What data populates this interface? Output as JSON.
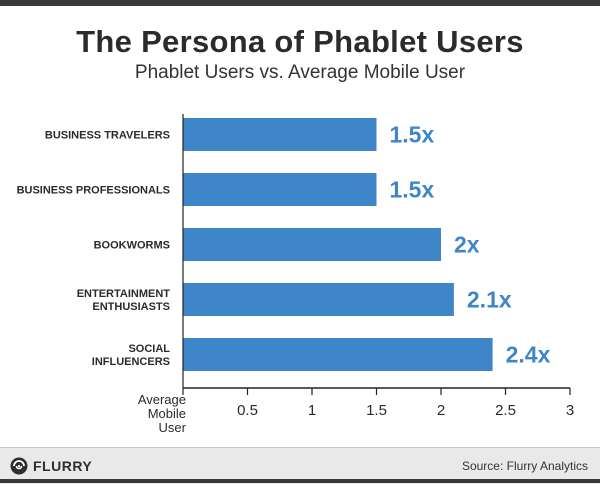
{
  "header": {
    "title": "The Persona of Phablet Users",
    "subtitle": "Phablet Users vs. Average Mobile User"
  },
  "chart_data": {
    "type": "bar",
    "orientation": "horizontal",
    "title": "The Persona of Phablet Users",
    "subtitle": "Phablet Users vs. Average Mobile User",
    "categories": [
      [
        "BUSINESS TRAVELERS"
      ],
      [
        "BUSINESS PROFESSIONALS"
      ],
      [
        "BOOKWORMS"
      ],
      [
        "ENTERTAINMENT",
        "ENTHUSIASTS"
      ],
      [
        "SOCIAL",
        "INFLUENCERS"
      ]
    ],
    "values": [
      1.5,
      1.5,
      2.0,
      2.1,
      2.4
    ],
    "data_labels": [
      "1.5x",
      "1.5x",
      "2x",
      "2.1x",
      "2.4x"
    ],
    "xlim": [
      0,
      3
    ],
    "xticks": [
      0.5,
      1,
      1.5,
      2,
      2.5,
      3
    ],
    "xtick_labels": [
      "0.5",
      "1",
      "1.5",
      "2",
      "2.5",
      "3"
    ],
    "baseline_label": [
      "Average",
      "Mobile",
      "User"
    ],
    "bar_color": "#3f86c9",
    "label_color": "#3f86c9",
    "grid": false
  },
  "footer": {
    "brand": "FLURRY",
    "source": "Source: Flurry Analytics"
  }
}
